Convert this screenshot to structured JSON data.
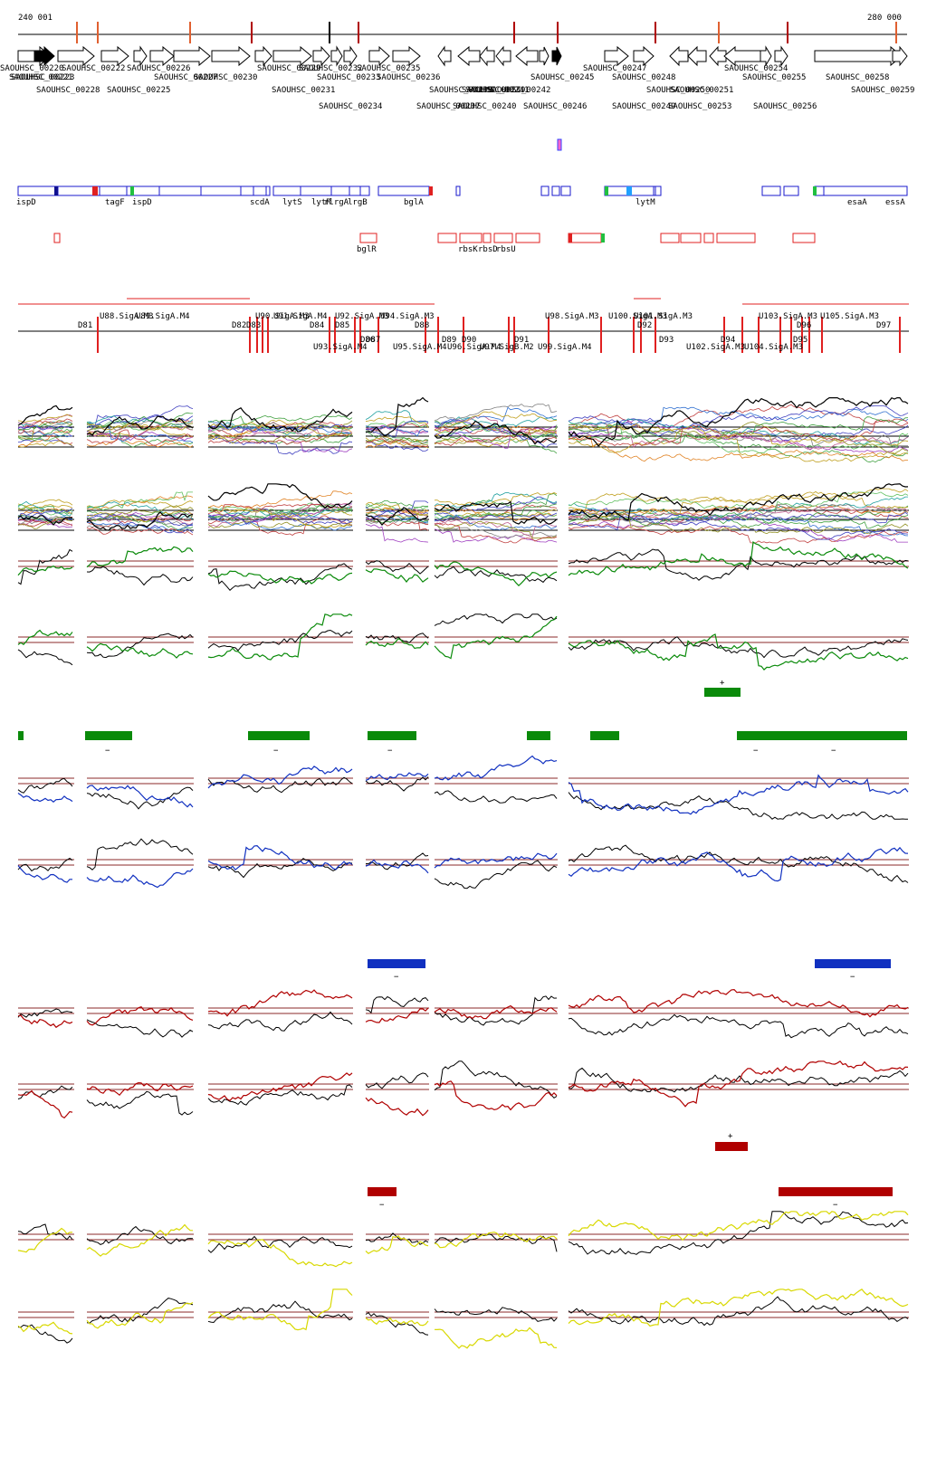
{
  "ruler": {
    "start_label": "240 001",
    "end_label": "280 000"
  },
  "genes": [
    {
      "label": "SAOUHSC_00220",
      "row": 0
    },
    {
      "label": "SAOUHSC_00221",
      "row": 1
    },
    {
      "label": "SAOUHSC_00222",
      "row": 0
    },
    {
      "label": "SAOUHSC_00223",
      "row": 1
    },
    {
      "label": "SAOUHSC_00225",
      "row": 2
    },
    {
      "label": "SAOUHSC_00226",
      "row": 0
    },
    {
      "label": "SAOUHSC_00227",
      "row": 1
    },
    {
      "label": "SAOUHSC_00228",
      "row": 2
    },
    {
      "label": "SAOUHSC_00229",
      "row": 0
    },
    {
      "label": "SAOUHSC_00230",
      "row": 1
    },
    {
      "label": "SAOUHSC_00231",
      "row": 2
    },
    {
      "label": "SAOUHSC_00232",
      "row": 0
    },
    {
      "label": "SAOUHSC_00233",
      "row": 1
    },
    {
      "label": "SAOUHSC_00234",
      "row": 3
    },
    {
      "label": "SAOUHSC_00235",
      "row": 0
    },
    {
      "label": "SAOUHSC_00236",
      "row": 1
    },
    {
      "label": "SAOUHSC_00237",
      "row": 3
    },
    {
      "label": "SAOUHSC_00238",
      "row": 2
    },
    {
      "label": "SAOUHSC_00239",
      "row": 2
    },
    {
      "label": "SAOUHSC_00240",
      "row": 3
    },
    {
      "label": "SAOUHSC_00241",
      "row": 2
    },
    {
      "label": "SAOUHSC_00242",
      "row": 2
    },
    {
      "label": "SAOUHSC_00245",
      "row": 1
    },
    {
      "label": "SAOUHSC_00246",
      "row": 3
    },
    {
      "label": "SAOUHSC_00247",
      "row": 0
    },
    {
      "label": "SAOUHSC_00248",
      "row": 1
    },
    {
      "label": "SAOUHSC_00249",
      "row": 3
    },
    {
      "label": "SAOUHSC_00250",
      "row": 2
    },
    {
      "label": "SAOUHSC_00251",
      "row": 2
    },
    {
      "label": "SAOUHSC_00253",
      "row": 3
    },
    {
      "label": "SAOUHSC_00254",
      "row": 0
    },
    {
      "label": "SAOUHSC_00255",
      "row": 1
    },
    {
      "label": "SAOUHSC_00256",
      "row": 3
    },
    {
      "label": "SAOUHSC_00258",
      "row": 1
    },
    {
      "label": "SAOUHSC_00259",
      "row": 2
    }
  ],
  "operons_blue": [
    "ispD",
    "tagF",
    "ispD",
    "scdA",
    "lytS",
    "lytR",
    "rlrgA",
    "lrgB",
    "bglA",
    "lytM",
    "esaA",
    "essA"
  ],
  "operons_red": [
    "bglR",
    "rbsK",
    "rbsD",
    "rbsU"
  ],
  "promoters_top": [
    "U88.SigA.M3",
    "U89.SigA.M4",
    "U90.SigA.M3",
    "U91.SigA.M4",
    "U92.SigA.M3",
    "U94.SigA.M3",
    "U98.SigA.M3",
    "U100.SigA.M3",
    "U101.SigA.M3",
    "U103.SigA.M3",
    "U105.SigA.M3"
  ],
  "promoters_bottom": [
    "U93.SigA.M4",
    "U95.SigA.M4",
    "U96.SigA.M4",
    "U97.SigB.M2",
    "U99.SigA.M4",
    "U102.SigA.M3",
    "U104.SigA.M3"
  ],
  "terminators": [
    "D81",
    "D82",
    "D83",
    "D84",
    "D85",
    "D86",
    "D87",
    "D88",
    "D89",
    "D90",
    "D91",
    "D92",
    "D93",
    "D94",
    "D95",
    "D96",
    "D97"
  ],
  "strand_marks": {
    "plus": "+",
    "minus": "−"
  },
  "colors": {
    "green": "#0a8a0a",
    "blue": "#1030c0",
    "red": "#b00000",
    "yellow": "#d8d800",
    "gene_fill_dark": "#000000",
    "operon_blue": "#1a1acc",
    "operon_red": "#e02020",
    "threshold": "#8b2a2a"
  }
}
